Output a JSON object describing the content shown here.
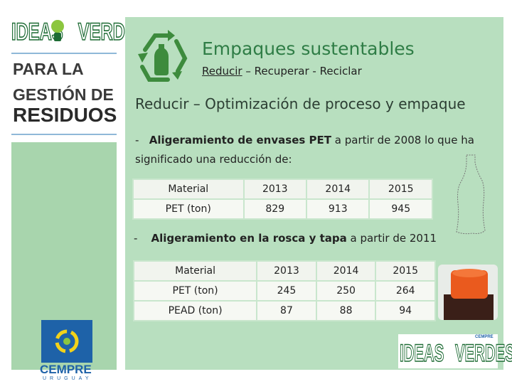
{
  "sidebar": {
    "logo": [
      "IDEAS",
      "VERDES"
    ],
    "lines": [
      "PARA LA",
      "GESTIÓN DE",
      "RESIDUOS"
    ],
    "cempre": "CEMPRE",
    "country": "URUGUAY"
  },
  "title": "Empaques sustentables",
  "subtitle": {
    "underlined": "Reducir",
    "rest": " – Recuperar - Reciclar"
  },
  "heading": "Reducir – Optimización de proceso y empaque",
  "bullets": [
    {
      "marker": "-",
      "bold": "Aligeramiento de envases PET",
      "text": " a partir de 2008 lo que ha significado una reducción de:"
    },
    {
      "marker": "-",
      "bold": "Aligeramiento en la rosca y tapa",
      "text": " a partir de 2011"
    }
  ],
  "tables": [
    {
      "header": [
        "Material",
        "2013",
        "2014",
        "2015"
      ],
      "rows": [
        [
          "PET (ton)",
          829,
          913,
          945
        ]
      ]
    },
    {
      "header": [
        "Material",
        "2013",
        "2014",
        "2015"
      ],
      "rows": [
        [
          "PET (ton)",
          245,
          250,
          264
        ],
        [
          "PEAD (ton)",
          87,
          88,
          94
        ]
      ]
    }
  ],
  "footer_logo": {
    "small": "CEMPRE",
    "logo": [
      "IDEAS",
      "VERDES"
    ]
  }
}
